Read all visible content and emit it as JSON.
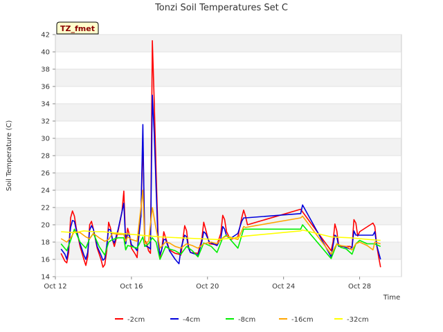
{
  "chart_data": {
    "type": "line",
    "title": "Tonzi Soil Temperatures Set C",
    "xlabel": "Time",
    "ylabel": "Soil Temperature (C)",
    "badge": "TZ_fmet",
    "ylim": [
      14,
      42
    ],
    "yticks": [
      14,
      16,
      18,
      20,
      22,
      24,
      26,
      28,
      30,
      32,
      34,
      36,
      38,
      40,
      42
    ],
    "xlim": [
      0,
      18.2
    ],
    "xticks": [
      {
        "value": 0,
        "label": "Oct 12"
      },
      {
        "value": 4,
        "label": "Oct 16"
      },
      {
        "value": 8,
        "label": "Oct 20"
      },
      {
        "value": 12,
        "label": "Oct 24"
      },
      {
        "value": 16,
        "label": "Oct 28"
      }
    ],
    "series": [
      {
        "name": "-2cm",
        "color": "#ff0000",
        "points": [
          [
            0.3,
            16.7
          ],
          [
            0.5,
            15.8
          ],
          [
            0.6,
            15.6
          ],
          [
            0.7,
            16.8
          ],
          [
            0.8,
            20.8
          ],
          [
            0.9,
            21.6
          ],
          [
            1.0,
            21.0
          ],
          [
            1.1,
            19.6
          ],
          [
            1.3,
            17.5
          ],
          [
            1.5,
            16.0
          ],
          [
            1.6,
            15.3
          ],
          [
            1.7,
            16.3
          ],
          [
            1.8,
            20.0
          ],
          [
            1.9,
            20.4
          ],
          [
            2.0,
            19.5
          ],
          [
            2.2,
            17.3
          ],
          [
            2.4,
            16.0
          ],
          [
            2.5,
            15.1
          ],
          [
            2.6,
            15.4
          ],
          [
            2.7,
            17.0
          ],
          [
            2.8,
            20.3
          ],
          [
            2.9,
            19.6
          ],
          [
            3.0,
            18.3
          ],
          [
            3.1,
            17.5
          ],
          [
            3.3,
            19.3
          ],
          [
            3.5,
            21.5
          ],
          [
            3.6,
            23.9
          ],
          [
            3.7,
            18.0
          ],
          [
            3.8,
            19.6
          ],
          [
            3.9,
            18.8
          ],
          [
            4.0,
            17.3
          ],
          [
            4.2,
            16.6
          ],
          [
            4.3,
            16.2
          ],
          [
            4.4,
            19.5
          ],
          [
            4.5,
            21.0
          ],
          [
            4.6,
            30.0
          ],
          [
            4.7,
            18.2
          ],
          [
            4.8,
            17.9
          ],
          [
            4.9,
            17.0
          ],
          [
            5.0,
            16.7
          ],
          [
            5.1,
            41.3
          ],
          [
            5.2,
            34.0
          ],
          [
            5.3,
            26.0
          ],
          [
            5.4,
            18.7
          ],
          [
            5.5,
            16.3
          ],
          [
            5.6,
            17.2
          ],
          [
            5.7,
            19.2
          ],
          [
            5.8,
            18.5
          ],
          [
            6.0,
            17.1
          ],
          [
            6.3,
            16.7
          ],
          [
            6.5,
            16.6
          ],
          [
            6.6,
            16.5
          ],
          [
            6.8,
            19.9
          ],
          [
            6.9,
            19.3
          ],
          [
            7.0,
            17.5
          ],
          [
            7.1,
            16.8
          ],
          [
            7.5,
            16.7
          ],
          [
            7.7,
            18.3
          ],
          [
            7.8,
            20.3
          ],
          [
            7.9,
            19.5
          ],
          [
            8.1,
            17.8
          ],
          [
            8.5,
            17.7
          ],
          [
            8.7,
            19.0
          ],
          [
            8.8,
            21.1
          ],
          [
            8.9,
            20.6
          ],
          [
            9.0,
            19.2
          ],
          [
            9.2,
            18.3
          ],
          [
            9.6,
            18.6
          ],
          [
            9.8,
            20.8
          ],
          [
            9.9,
            21.7
          ],
          [
            10.0,
            21.0
          ],
          [
            10.1,
            20.0
          ],
          [
            12.9,
            21.8
          ],
          [
            13.0,
            21.5
          ],
          [
            14.5,
            17.0
          ],
          [
            14.6,
            18.0
          ],
          [
            14.7,
            20.1
          ],
          [
            14.8,
            19.3
          ],
          [
            14.9,
            17.6
          ],
          [
            15.0,
            17.5
          ],
          [
            15.5,
            17.5
          ],
          [
            15.6,
            17.4
          ],
          [
            15.7,
            20.6
          ],
          [
            15.8,
            20.2
          ],
          [
            15.9,
            18.7
          ],
          [
            16.0,
            19.2
          ],
          [
            16.7,
            20.2
          ],
          [
            16.8,
            19.8
          ],
          [
            16.9,
            17.6
          ],
          [
            17.0,
            16.3
          ],
          [
            17.1,
            15.1
          ]
        ]
      },
      {
        "name": "-4cm",
        "color": "#0000dd",
        "points": [
          [
            0.3,
            17.2
          ],
          [
            0.5,
            16.6
          ],
          [
            0.6,
            16.0
          ],
          [
            0.7,
            17.4
          ],
          [
            0.8,
            19.7
          ],
          [
            0.9,
            20.5
          ],
          [
            1.0,
            20.4
          ],
          [
            1.1,
            19.4
          ],
          [
            1.3,
            17.8
          ],
          [
            1.5,
            16.5
          ],
          [
            1.6,
            16.0
          ],
          [
            1.7,
            16.8
          ],
          [
            1.8,
            19.4
          ],
          [
            1.9,
            19.9
          ],
          [
            2.0,
            19.5
          ],
          [
            2.2,
            17.5
          ],
          [
            2.4,
            16.5
          ],
          [
            2.5,
            15.9
          ],
          [
            2.6,
            16.1
          ],
          [
            2.7,
            17.6
          ],
          [
            2.8,
            19.5
          ],
          [
            2.9,
            19.4
          ],
          [
            3.0,
            18.3
          ],
          [
            3.1,
            17.9
          ],
          [
            3.3,
            19.5
          ],
          [
            3.5,
            21.5
          ],
          [
            3.6,
            22.5
          ],
          [
            3.7,
            17.8
          ],
          [
            3.8,
            19.0
          ],
          [
            3.9,
            18.7
          ],
          [
            4.0,
            17.7
          ],
          [
            4.2,
            17.3
          ],
          [
            4.3,
            17.0
          ],
          [
            4.4,
            18.8
          ],
          [
            4.5,
            21.0
          ],
          [
            4.6,
            31.6
          ],
          [
            4.7,
            17.6
          ],
          [
            4.8,
            17.5
          ],
          [
            4.9,
            17.4
          ],
          [
            5.0,
            17.2
          ],
          [
            5.1,
            35.0
          ],
          [
            5.2,
            30.5
          ],
          [
            5.3,
            24.0
          ],
          [
            5.4,
            18.0
          ],
          [
            5.5,
            16.5
          ],
          [
            5.6,
            17.2
          ],
          [
            5.7,
            18.3
          ],
          [
            5.8,
            18.3
          ],
          [
            6.0,
            17.0
          ],
          [
            6.3,
            16.0
          ],
          [
            6.5,
            15.5
          ],
          [
            6.6,
            17.2
          ],
          [
            6.8,
            18.8
          ],
          [
            6.9,
            18.6
          ],
          [
            7.0,
            17.3
          ],
          [
            7.1,
            16.8
          ],
          [
            7.5,
            16.5
          ],
          [
            7.7,
            18.0
          ],
          [
            7.8,
            19.2
          ],
          [
            7.9,
            19.0
          ],
          [
            8.1,
            18.0
          ],
          [
            8.5,
            17.6
          ],
          [
            8.7,
            18.4
          ],
          [
            8.8,
            19.8
          ],
          [
            8.9,
            19.5
          ],
          [
            9.0,
            18.7
          ],
          [
            9.2,
            18.4
          ],
          [
            9.6,
            19.0
          ],
          [
            9.8,
            20.4
          ],
          [
            9.9,
            20.8
          ],
          [
            10.0,
            20.8
          ],
          [
            12.9,
            21.3
          ],
          [
            13.0,
            22.3
          ],
          [
            14.5,
            16.3
          ],
          [
            14.6,
            17.6
          ],
          [
            14.7,
            18.8
          ],
          [
            14.8,
            18.6
          ],
          [
            14.9,
            17.5
          ],
          [
            15.0,
            17.6
          ],
          [
            15.5,
            17.2
          ],
          [
            15.6,
            17.4
          ],
          [
            15.7,
            19.3
          ],
          [
            15.8,
            18.8
          ],
          [
            15.9,
            18.8
          ],
          [
            16.0,
            18.8
          ],
          [
            16.7,
            18.8
          ],
          [
            16.8,
            19.2
          ],
          [
            16.9,
            17.6
          ],
          [
            17.0,
            16.8
          ],
          [
            17.1,
            16.0
          ]
        ]
      },
      {
        "name": "-8cm",
        "color": "#00ee00",
        "points": [
          [
            0.3,
            17.8
          ],
          [
            0.6,
            17.0
          ],
          [
            0.8,
            18.2
          ],
          [
            1.0,
            19.5
          ],
          [
            1.3,
            18.0
          ],
          [
            1.6,
            17.3
          ],
          [
            1.8,
            18.4
          ],
          [
            2.0,
            19.0
          ],
          [
            2.3,
            17.5
          ],
          [
            2.6,
            16.5
          ],
          [
            2.8,
            18.0
          ],
          [
            3.0,
            18.3
          ],
          [
            3.3,
            18.5
          ],
          [
            3.6,
            18.5
          ],
          [
            3.7,
            17.1
          ],
          [
            3.8,
            17.6
          ],
          [
            4.0,
            17.5
          ],
          [
            4.3,
            17.3
          ],
          [
            4.6,
            18.6
          ],
          [
            4.7,
            17.5
          ],
          [
            4.9,
            17.8
          ],
          [
            5.1,
            18.5
          ],
          [
            5.3,
            18.0
          ],
          [
            5.5,
            16.0
          ],
          [
            5.8,
            17.5
          ],
          [
            6.0,
            17.2
          ],
          [
            6.3,
            17.0
          ],
          [
            6.6,
            16.6
          ],
          [
            6.9,
            17.5
          ],
          [
            7.2,
            17.0
          ],
          [
            7.5,
            16.3
          ],
          [
            7.8,
            17.9
          ],
          [
            8.2,
            17.5
          ],
          [
            8.5,
            16.8
          ],
          [
            8.8,
            18.5
          ],
          [
            9.0,
            18.8
          ],
          [
            9.6,
            17.3
          ],
          [
            9.9,
            19.5
          ],
          [
            10.0,
            19.5
          ],
          [
            12.9,
            19.5
          ],
          [
            13.0,
            20.0
          ],
          [
            14.5,
            16.1
          ],
          [
            14.8,
            17.8
          ],
          [
            15.0,
            17.4
          ],
          [
            15.3,
            17.2
          ],
          [
            15.6,
            16.6
          ],
          [
            15.8,
            17.8
          ],
          [
            16.0,
            18.2
          ],
          [
            16.4,
            17.8
          ],
          [
            16.8,
            17.8
          ],
          [
            17.1,
            17.5
          ]
        ]
      },
      {
        "name": "-16cm",
        "color": "#ffa500",
        "points": [
          [
            0.3,
            18.4
          ],
          [
            0.6,
            18.0
          ],
          [
            0.8,
            18.5
          ],
          [
            1.0,
            19.2
          ],
          [
            1.3,
            19.1
          ],
          [
            1.6,
            18.6
          ],
          [
            1.8,
            18.4
          ],
          [
            2.0,
            19.0
          ],
          [
            2.3,
            18.5
          ],
          [
            2.6,
            18.1
          ],
          [
            2.8,
            18.3
          ],
          [
            3.0,
            19.0
          ],
          [
            3.3,
            18.9
          ],
          [
            3.6,
            18.9
          ],
          [
            3.7,
            18.1
          ],
          [
            3.8,
            18.6
          ],
          [
            4.0,
            18.3
          ],
          [
            4.3,
            18.1
          ],
          [
            4.6,
            24.0
          ],
          [
            4.7,
            17.8
          ],
          [
            4.9,
            18.1
          ],
          [
            5.1,
            22.0
          ],
          [
            5.3,
            19.5
          ],
          [
            5.5,
            17.3
          ],
          [
            5.8,
            18.0
          ],
          [
            6.0,
            17.9
          ],
          [
            6.3,
            17.5
          ],
          [
            6.6,
            17.3
          ],
          [
            6.9,
            17.8
          ],
          [
            7.2,
            17.6
          ],
          [
            7.5,
            17.3
          ],
          [
            7.8,
            17.8
          ],
          [
            8.2,
            18.0
          ],
          [
            8.5,
            17.8
          ],
          [
            8.8,
            18.5
          ],
          [
            9.0,
            18.7
          ],
          [
            9.6,
            18.3
          ],
          [
            9.9,
            19.8
          ],
          [
            10.0,
            19.7
          ],
          [
            12.9,
            20.8
          ],
          [
            13.0,
            21.0
          ],
          [
            14.5,
            16.6
          ],
          [
            14.8,
            17.8
          ],
          [
            15.0,
            17.6
          ],
          [
            15.3,
            17.5
          ],
          [
            15.6,
            17.1
          ],
          [
            15.8,
            17.8
          ],
          [
            16.0,
            18.0
          ],
          [
            16.4,
            17.6
          ],
          [
            16.7,
            17.1
          ],
          [
            16.8,
            18.0
          ],
          [
            17.1,
            17.8
          ]
        ]
      },
      {
        "name": "-32cm",
        "color": "#ffff00",
        "points": [
          [
            0.3,
            19.2
          ],
          [
            1.0,
            19.1
          ],
          [
            1.5,
            19.3
          ],
          [
            2.0,
            19.2
          ],
          [
            2.5,
            19.2
          ],
          [
            3.0,
            19.1
          ],
          [
            3.5,
            19.0
          ],
          [
            4.0,
            18.9
          ],
          [
            4.5,
            18.8
          ],
          [
            5.0,
            18.7
          ],
          [
            5.5,
            18.6
          ],
          [
            6.5,
            18.5
          ],
          [
            7.5,
            18.4
          ],
          [
            8.5,
            18.3
          ],
          [
            9.5,
            18.5
          ],
          [
            10.0,
            18.7
          ],
          [
            12.9,
            19.3
          ],
          [
            13.0,
            19.4
          ],
          [
            14.5,
            18.6
          ],
          [
            15.5,
            18.5
          ],
          [
            16.5,
            18.3
          ],
          [
            17.1,
            18.2
          ]
        ]
      }
    ]
  }
}
